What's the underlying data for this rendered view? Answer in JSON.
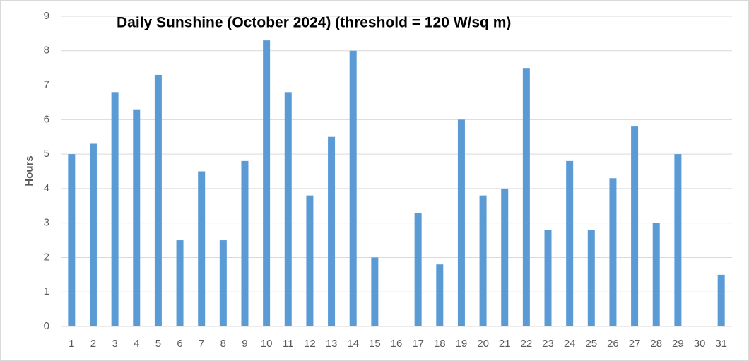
{
  "chart_data": {
    "type": "bar",
    "title": "Daily Sunshine (October 2024) (threshold = 120 W/sq m)",
    "y_label": "Hours",
    "categories": [
      "1",
      "2",
      "3",
      "4",
      "5",
      "6",
      "7",
      "8",
      "9",
      "10",
      "11",
      "12",
      "13",
      "14",
      "15",
      "16",
      "17",
      "18",
      "19",
      "20",
      "21",
      "22",
      "23",
      "24",
      "25",
      "26",
      "27",
      "28",
      "29",
      "30",
      "31"
    ],
    "values": [
      5,
      5.3,
      6.8,
      6.3,
      7.3,
      2.5,
      4.5,
      2.5,
      4.8,
      8.3,
      6.8,
      3.8,
      5.5,
      8,
      2,
      0,
      3.3,
      1.8,
      6,
      3.8,
      4,
      7.5,
      2.8,
      4.8,
      2.8,
      4.3,
      5.8,
      3,
      5,
      0,
      1.5
    ],
    "color": "#5b9bd5",
    "ylim": [
      0,
      9
    ],
    "yticks": [
      0,
      1,
      2,
      3,
      4,
      5,
      6,
      7,
      8,
      9
    ],
    "grid": true
  }
}
